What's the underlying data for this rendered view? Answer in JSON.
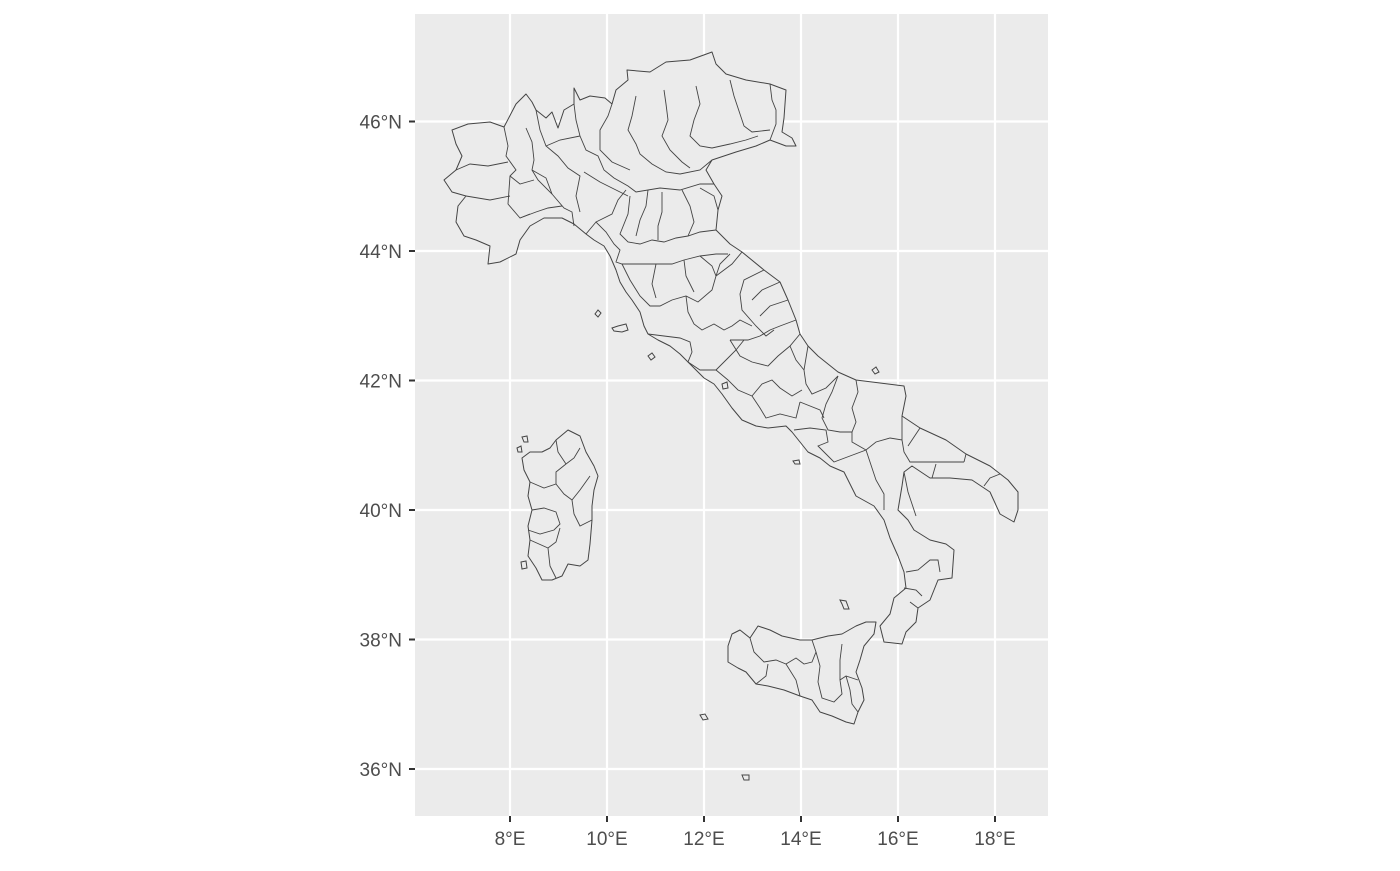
{
  "map": {
    "region": "Italy",
    "projection": "lon/lat",
    "panel_background": "#ebebeb",
    "grid_color": "#ffffff",
    "region_fill": "#ebebeb",
    "region_stroke": "#444444",
    "lon_range": [
      6.0,
      19.0
    ],
    "lat_range": [
      35.2,
      47.6
    ],
    "x_ticks": [
      {
        "value": 8,
        "label": "8°E"
      },
      {
        "value": 10,
        "label": "10°E"
      },
      {
        "value": 12,
        "label": "12°E"
      },
      {
        "value": 14,
        "label": "14°E"
      },
      {
        "value": 16,
        "label": "16°E"
      },
      {
        "value": 18,
        "label": "18°E"
      }
    ],
    "y_ticks": [
      {
        "value": 36,
        "label": "36°N"
      },
      {
        "value": 38,
        "label": "38°N"
      },
      {
        "value": 40,
        "label": "40°N"
      },
      {
        "value": 42,
        "label": "42°N"
      },
      {
        "value": 44,
        "label": "44°N"
      },
      {
        "value": 46,
        "label": "46°N"
      }
    ],
    "grid": true
  }
}
